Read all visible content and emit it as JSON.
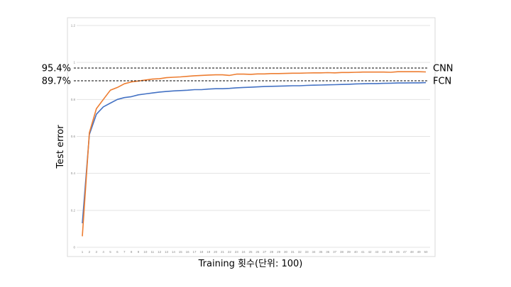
{
  "chart_data": {
    "type": "line",
    "title": "",
    "xlabel": "Training 횟수(단위: 100)",
    "ylabel": "Test error",
    "ylim": [
      0,
      1.2
    ],
    "yticks": [
      "0",
      "0.2",
      "0.4",
      "0.6",
      "0.8",
      "1",
      "1.2"
    ],
    "grid": true,
    "legend": "none",
    "x": [
      1,
      2,
      3,
      4,
      5,
      6,
      7,
      8,
      9,
      10,
      11,
      12,
      13,
      14,
      15,
      16,
      17,
      18,
      19,
      20,
      21,
      22,
      23,
      24,
      25,
      26,
      27,
      28,
      29,
      30,
      31,
      32,
      33,
      34,
      35,
      36,
      37,
      38,
      39,
      40,
      41,
      42,
      43,
      44,
      45,
      46,
      47,
      48,
      49,
      50
    ],
    "series": [
      {
        "name": "CNN",
        "color": "#ED7D31",
        "values": [
          0.06,
          0.62,
          0.75,
          0.8,
          0.85,
          0.865,
          0.885,
          0.895,
          0.9,
          0.905,
          0.91,
          0.912,
          0.918,
          0.92,
          0.922,
          0.925,
          0.928,
          0.93,
          0.932,
          0.933,
          0.933,
          0.93,
          0.937,
          0.937,
          0.936,
          0.938,
          0.938,
          0.94,
          0.94,
          0.941,
          0.942,
          0.942,
          0.943,
          0.944,
          0.944,
          0.945,
          0.944,
          0.946,
          0.946,
          0.947,
          0.948,
          0.948,
          0.948,
          0.948,
          0.947,
          0.95,
          0.95,
          0.95,
          0.95,
          0.949
        ]
      },
      {
        "name": "FCN",
        "color": "#4472C4",
        "values": [
          0.13,
          0.61,
          0.72,
          0.76,
          0.78,
          0.8,
          0.81,
          0.815,
          0.825,
          0.83,
          0.835,
          0.84,
          0.843,
          0.846,
          0.848,
          0.85,
          0.853,
          0.853,
          0.856,
          0.858,
          0.858,
          0.86,
          0.863,
          0.865,
          0.866,
          0.868,
          0.87,
          0.871,
          0.872,
          0.873,
          0.874,
          0.874,
          0.876,
          0.877,
          0.878,
          0.879,
          0.88,
          0.881,
          0.882,
          0.884,
          0.885,
          0.886,
          0.886,
          0.887,
          0.888,
          0.889,
          0.889,
          0.89,
          0.89,
          0.891
        ]
      }
    ],
    "annotations": [
      {
        "label": "95.4%",
        "series": "CNN",
        "value": 0.954
      },
      {
        "label": "89.7%",
        "series": "FCN",
        "value": 0.897
      }
    ]
  }
}
